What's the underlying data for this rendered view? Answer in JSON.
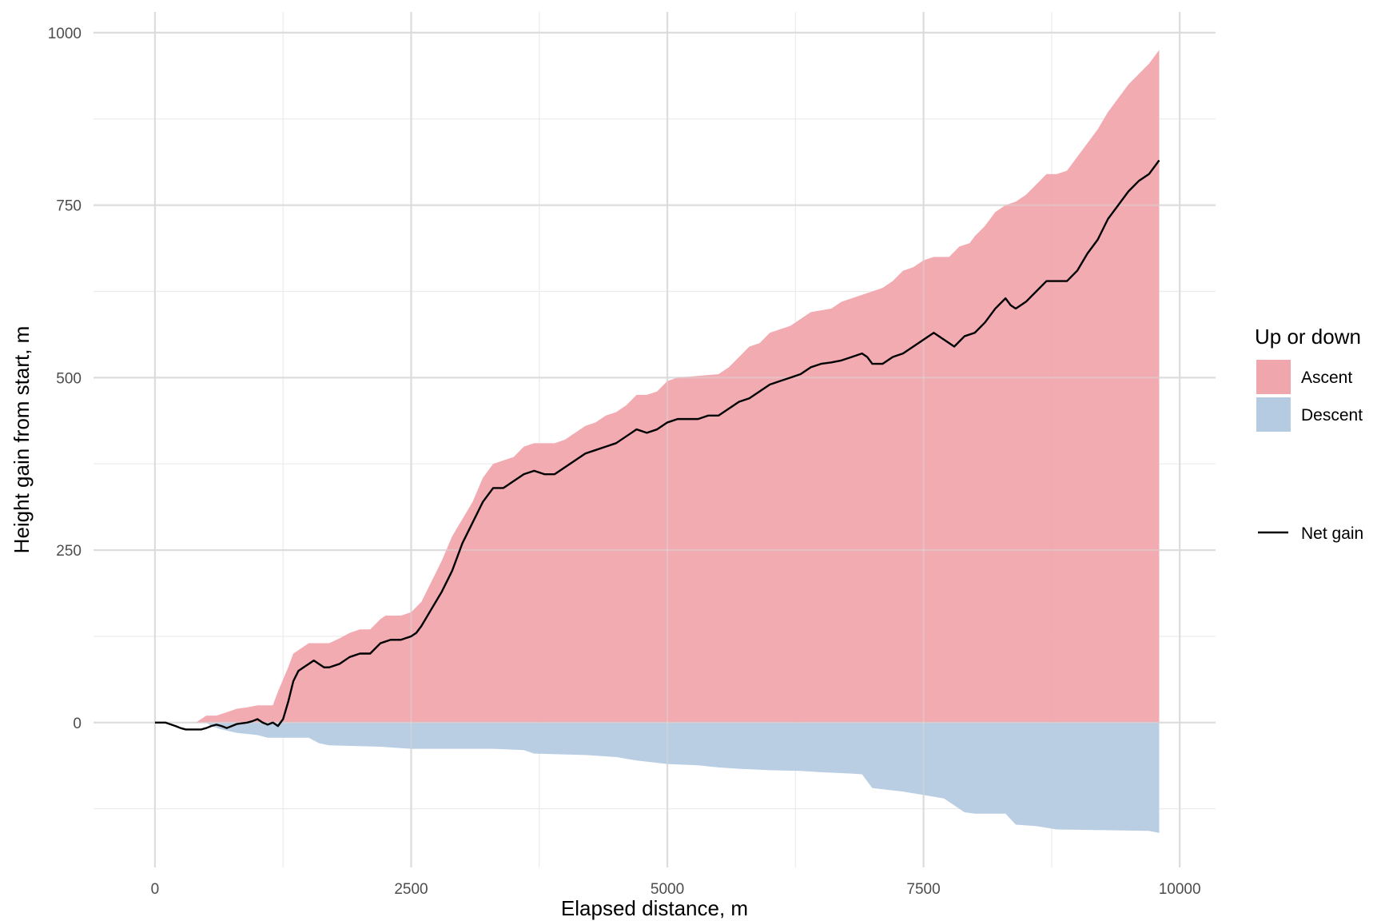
{
  "chart_data": {
    "type": "area",
    "title": "",
    "xlabel": "Elapsed distance, m",
    "ylabel": "Height gain from start, m",
    "xlim": [
      -600,
      10350
    ],
    "ylim": [
      -210,
      1030
    ],
    "x_ticks": [
      0,
      2500,
      5000,
      7500,
      10000
    ],
    "x_tick_labels": [
      "0",
      "2500",
      "5000",
      "7500",
      "10000"
    ],
    "y_ticks": [
      0,
      250,
      500,
      750,
      1000
    ],
    "y_tick_labels": [
      "0",
      "250",
      "500",
      "750",
      "1000"
    ],
    "grid": true,
    "legend": {
      "title": "Up or down",
      "position": "right",
      "fill_entries": [
        {
          "label": "Ascent",
          "color": "#f0a6ad"
        },
        {
          "label": "Descent",
          "color": "#b5cbe2"
        }
      ],
      "line_entries": [
        {
          "label": "Net gain",
          "color": "#000000"
        }
      ]
    },
    "series": [
      {
        "name": "Ascent",
        "kind": "area",
        "color": "#f0a6ad",
        "points": [
          [
            0,
            0
          ],
          [
            400,
            0
          ],
          [
            450,
            5
          ],
          [
            500,
            10
          ],
          [
            600,
            10
          ],
          [
            700,
            15
          ],
          [
            800,
            20
          ],
          [
            900,
            22
          ],
          [
            1000,
            25
          ],
          [
            1150,
            25
          ],
          [
            1200,
            45
          ],
          [
            1300,
            80
          ],
          [
            1350,
            100
          ],
          [
            1450,
            110
          ],
          [
            1500,
            115
          ],
          [
            1700,
            115
          ],
          [
            1800,
            122
          ],
          [
            1900,
            130
          ],
          [
            2000,
            135
          ],
          [
            2100,
            135
          ],
          [
            2200,
            150
          ],
          [
            2250,
            155
          ],
          [
            2400,
            155
          ],
          [
            2500,
            160
          ],
          [
            2600,
            175
          ],
          [
            2700,
            205
          ],
          [
            2800,
            235
          ],
          [
            2900,
            270
          ],
          [
            3000,
            295
          ],
          [
            3100,
            320
          ],
          [
            3200,
            355
          ],
          [
            3300,
            375
          ],
          [
            3400,
            380
          ],
          [
            3500,
            385
          ],
          [
            3600,
            400
          ],
          [
            3700,
            405
          ],
          [
            3900,
            405
          ],
          [
            4000,
            410
          ],
          [
            4100,
            420
          ],
          [
            4200,
            430
          ],
          [
            4300,
            435
          ],
          [
            4400,
            445
          ],
          [
            4500,
            450
          ],
          [
            4600,
            460
          ],
          [
            4700,
            475
          ],
          [
            4800,
            475
          ],
          [
            4900,
            480
          ],
          [
            5000,
            495
          ],
          [
            5100,
            500
          ],
          [
            5500,
            505
          ],
          [
            5600,
            515
          ],
          [
            5700,
            530
          ],
          [
            5800,
            545
          ],
          [
            5900,
            550
          ],
          [
            6000,
            565
          ],
          [
            6100,
            570
          ],
          [
            6200,
            575
          ],
          [
            6300,
            585
          ],
          [
            6400,
            595
          ],
          [
            6600,
            600
          ],
          [
            6700,
            610
          ],
          [
            6800,
            615
          ],
          [
            7000,
            625
          ],
          [
            7100,
            630
          ],
          [
            7200,
            640
          ],
          [
            7300,
            655
          ],
          [
            7400,
            660
          ],
          [
            7500,
            670
          ],
          [
            7600,
            675
          ],
          [
            7750,
            675
          ],
          [
            7850,
            690
          ],
          [
            7950,
            695
          ],
          [
            8000,
            705
          ],
          [
            8100,
            720
          ],
          [
            8200,
            740
          ],
          [
            8300,
            750
          ],
          [
            8400,
            755
          ],
          [
            8500,
            765
          ],
          [
            8600,
            780
          ],
          [
            8700,
            795
          ],
          [
            8800,
            795
          ],
          [
            8900,
            800
          ],
          [
            9000,
            820
          ],
          [
            9100,
            840
          ],
          [
            9200,
            860
          ],
          [
            9300,
            885
          ],
          [
            9400,
            905
          ],
          [
            9500,
            925
          ],
          [
            9600,
            940
          ],
          [
            9700,
            955
          ],
          [
            9800,
            975
          ]
        ]
      },
      {
        "name": "Descent",
        "kind": "area",
        "color": "#b5cbe2",
        "points": [
          [
            0,
            0
          ],
          [
            500,
            0
          ],
          [
            550,
            -5
          ],
          [
            650,
            -10
          ],
          [
            800,
            -15
          ],
          [
            1000,
            -18
          ],
          [
            1100,
            -22
          ],
          [
            1500,
            -22
          ],
          [
            1600,
            -30
          ],
          [
            1700,
            -33
          ],
          [
            2200,
            -35
          ],
          [
            2500,
            -38
          ],
          [
            3300,
            -38
          ],
          [
            3600,
            -40
          ],
          [
            3700,
            -45
          ],
          [
            4200,
            -47
          ],
          [
            4500,
            -50
          ],
          [
            4700,
            -55
          ],
          [
            5000,
            -60
          ],
          [
            5300,
            -62
          ],
          [
            5500,
            -65
          ],
          [
            5700,
            -67
          ],
          [
            6000,
            -69
          ],
          [
            6300,
            -70
          ],
          [
            6500,
            -72
          ],
          [
            6800,
            -74
          ],
          [
            6900,
            -75
          ],
          [
            7000,
            -95
          ],
          [
            7300,
            -100
          ],
          [
            7500,
            -105
          ],
          [
            7700,
            -110
          ],
          [
            7800,
            -120
          ],
          [
            7900,
            -130
          ],
          [
            8000,
            -132
          ],
          [
            8300,
            -132
          ],
          [
            8400,
            -148
          ],
          [
            8600,
            -150
          ],
          [
            8800,
            -155
          ],
          [
            9700,
            -157
          ],
          [
            9800,
            -160
          ]
        ]
      },
      {
        "name": "Net gain",
        "kind": "line",
        "color": "#000000",
        "points": [
          [
            0,
            0
          ],
          [
            100,
            0
          ],
          [
            200,
            -5
          ],
          [
            250,
            -8
          ],
          [
            300,
            -10
          ],
          [
            450,
            -10
          ],
          [
            500,
            -8
          ],
          [
            550,
            -5
          ],
          [
            600,
            -3
          ],
          [
            650,
            -5
          ],
          [
            700,
            -8
          ],
          [
            750,
            -5
          ],
          [
            800,
            -2
          ],
          [
            900,
            0
          ],
          [
            950,
            2
          ],
          [
            1000,
            5
          ],
          [
            1050,
            0
          ],
          [
            1100,
            -3
          ],
          [
            1150,
            0
          ],
          [
            1200,
            -5
          ],
          [
            1250,
            5
          ],
          [
            1300,
            30
          ],
          [
            1350,
            60
          ],
          [
            1400,
            75
          ],
          [
            1450,
            80
          ],
          [
            1500,
            85
          ],
          [
            1550,
            90
          ],
          [
            1600,
            85
          ],
          [
            1650,
            80
          ],
          [
            1700,
            80
          ],
          [
            1800,
            85
          ],
          [
            1900,
            95
          ],
          [
            2000,
            100
          ],
          [
            2100,
            100
          ],
          [
            2200,
            115
          ],
          [
            2300,
            120
          ],
          [
            2400,
            120
          ],
          [
            2500,
            125
          ],
          [
            2550,
            130
          ],
          [
            2600,
            140
          ],
          [
            2700,
            165
          ],
          [
            2800,
            190
          ],
          [
            2900,
            220
          ],
          [
            3000,
            260
          ],
          [
            3100,
            290
          ],
          [
            3200,
            320
          ],
          [
            3300,
            340
          ],
          [
            3400,
            340
          ],
          [
            3500,
            350
          ],
          [
            3600,
            360
          ],
          [
            3700,
            365
          ],
          [
            3800,
            360
          ],
          [
            3900,
            360
          ],
          [
            4000,
            370
          ],
          [
            4100,
            380
          ],
          [
            4200,
            390
          ],
          [
            4300,
            395
          ],
          [
            4400,
            400
          ],
          [
            4500,
            405
          ],
          [
            4600,
            415
          ],
          [
            4700,
            425
          ],
          [
            4800,
            420
          ],
          [
            4900,
            425
          ],
          [
            5000,
            435
          ],
          [
            5100,
            440
          ],
          [
            5200,
            440
          ],
          [
            5300,
            440
          ],
          [
            5400,
            445
          ],
          [
            5500,
            445
          ],
          [
            5600,
            455
          ],
          [
            5700,
            465
          ],
          [
            5800,
            470
          ],
          [
            5900,
            480
          ],
          [
            6000,
            490
          ],
          [
            6100,
            495
          ],
          [
            6200,
            500
          ],
          [
            6300,
            505
          ],
          [
            6400,
            515
          ],
          [
            6500,
            520
          ],
          [
            6600,
            522
          ],
          [
            6700,
            525
          ],
          [
            6800,
            530
          ],
          [
            6900,
            535
          ],
          [
            6950,
            530
          ],
          [
            7000,
            520
          ],
          [
            7100,
            520
          ],
          [
            7200,
            530
          ],
          [
            7300,
            535
          ],
          [
            7400,
            545
          ],
          [
            7500,
            555
          ],
          [
            7600,
            565
          ],
          [
            7700,
            555
          ],
          [
            7800,
            545
          ],
          [
            7900,
            560
          ],
          [
            8000,
            565
          ],
          [
            8100,
            580
          ],
          [
            8200,
            600
          ],
          [
            8300,
            615
          ],
          [
            8350,
            605
          ],
          [
            8400,
            600
          ],
          [
            8500,
            610
          ],
          [
            8600,
            625
          ],
          [
            8700,
            640
          ],
          [
            8800,
            640
          ],
          [
            8900,
            640
          ],
          [
            9000,
            655
          ],
          [
            9100,
            680
          ],
          [
            9200,
            700
          ],
          [
            9300,
            730
          ],
          [
            9400,
            750
          ],
          [
            9500,
            770
          ],
          [
            9600,
            785
          ],
          [
            9700,
            795
          ],
          [
            9800,
            815
          ]
        ]
      }
    ]
  }
}
